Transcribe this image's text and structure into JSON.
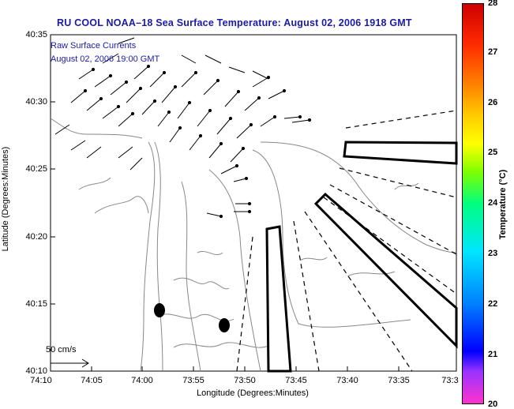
{
  "title": "RU COOL  NOAA–18  Sea Surface Temperature:  August 02, 2006 1918 GMT",
  "inset": {
    "line1": "Raw Surface Currents",
    "line2": "August 02, 2006 19:00 GMT"
  },
  "axes": {
    "ylabel": "Latitude (Degrees:Minutes)",
    "xlabel": "Longitude (Degrees:Minutes)",
    "y_ticks": [
      "40:35",
      "40:30",
      "40:25",
      "40:20",
      "40:15",
      "40:10"
    ],
    "x_ticks": [
      "74:10",
      "74:05",
      "74:00",
      "73:55",
      "73:50",
      "73:45",
      "73:40",
      "73:35",
      "73:3"
    ]
  },
  "scale_label": "50 cm/s",
  "colorbar": {
    "label": "Temperature (°C)",
    "ticks": [
      "28",
      "27",
      "26",
      "25",
      "24",
      "23",
      "22",
      "21",
      "20"
    ],
    "range": [
      20,
      28
    ]
  },
  "colors": {
    "title": "#1a1aa6",
    "contour": "#888888",
    "vectors": "#000000"
  }
}
